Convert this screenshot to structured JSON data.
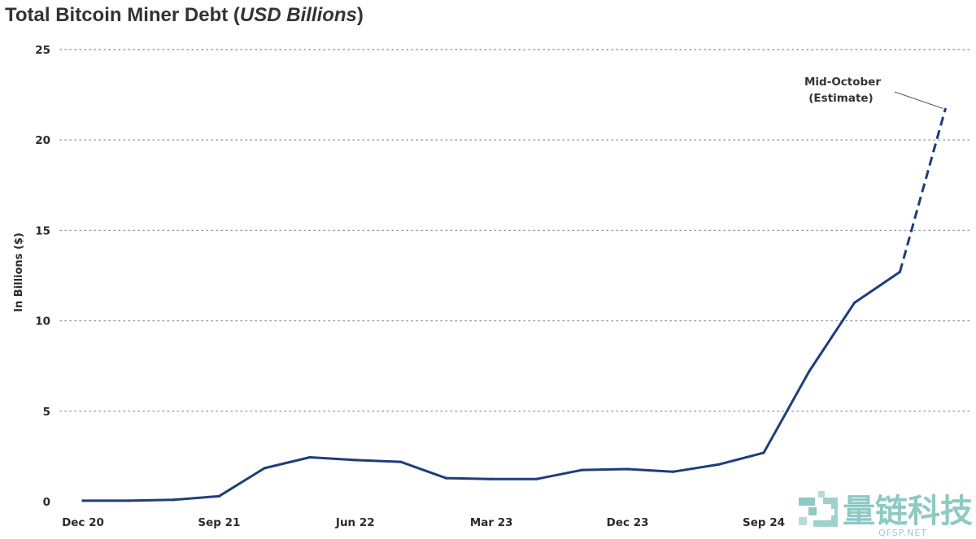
{
  "chart_data": {
    "type": "line",
    "title_main": "Total Bitcoin Miner Debt (",
    "title_em": "USD Billions",
    "title_close": ")",
    "ylabel": "In Billions ($)",
    "ylim": [
      0,
      25
    ],
    "yticks": [
      0,
      5,
      10,
      15,
      20,
      25
    ],
    "grid": true,
    "x_tick_labels": [
      "Dec 20",
      "Sep 21",
      "Jun 22",
      "Mar 23",
      "Dec 23",
      "Sep 24"
    ],
    "x": [
      "Dec 20",
      "Mar 21",
      "Jun 21",
      "Sep 21",
      "Dec 21",
      "Mar 22",
      "Jun 22",
      "Sep 22",
      "Dec 22",
      "Mar 23",
      "Jun 23",
      "Sep 23",
      "Dec 23",
      "Mar 24",
      "Jun 24",
      "Sep 24",
      "Dec 24",
      "Mar 25",
      "Jun 25",
      "Mid-October"
    ],
    "series": [
      {
        "values": [
          0.05,
          0.05,
          0.1,
          0.3,
          1.85,
          2.45,
          2.3,
          2.2,
          1.3,
          1.25,
          1.25,
          1.75,
          1.8,
          1.65,
          2.05,
          2.7,
          7.2,
          11.0,
          12.7,
          21.7
        ],
        "color": "#1f3d7a",
        "estimate_from_index": 18
      }
    ],
    "annotation": {
      "line1": "Mid-October",
      "line2": "(Estimate)"
    }
  },
  "watermark": {
    "chinese": "量链科技",
    "latin": "QFSP.NET"
  }
}
